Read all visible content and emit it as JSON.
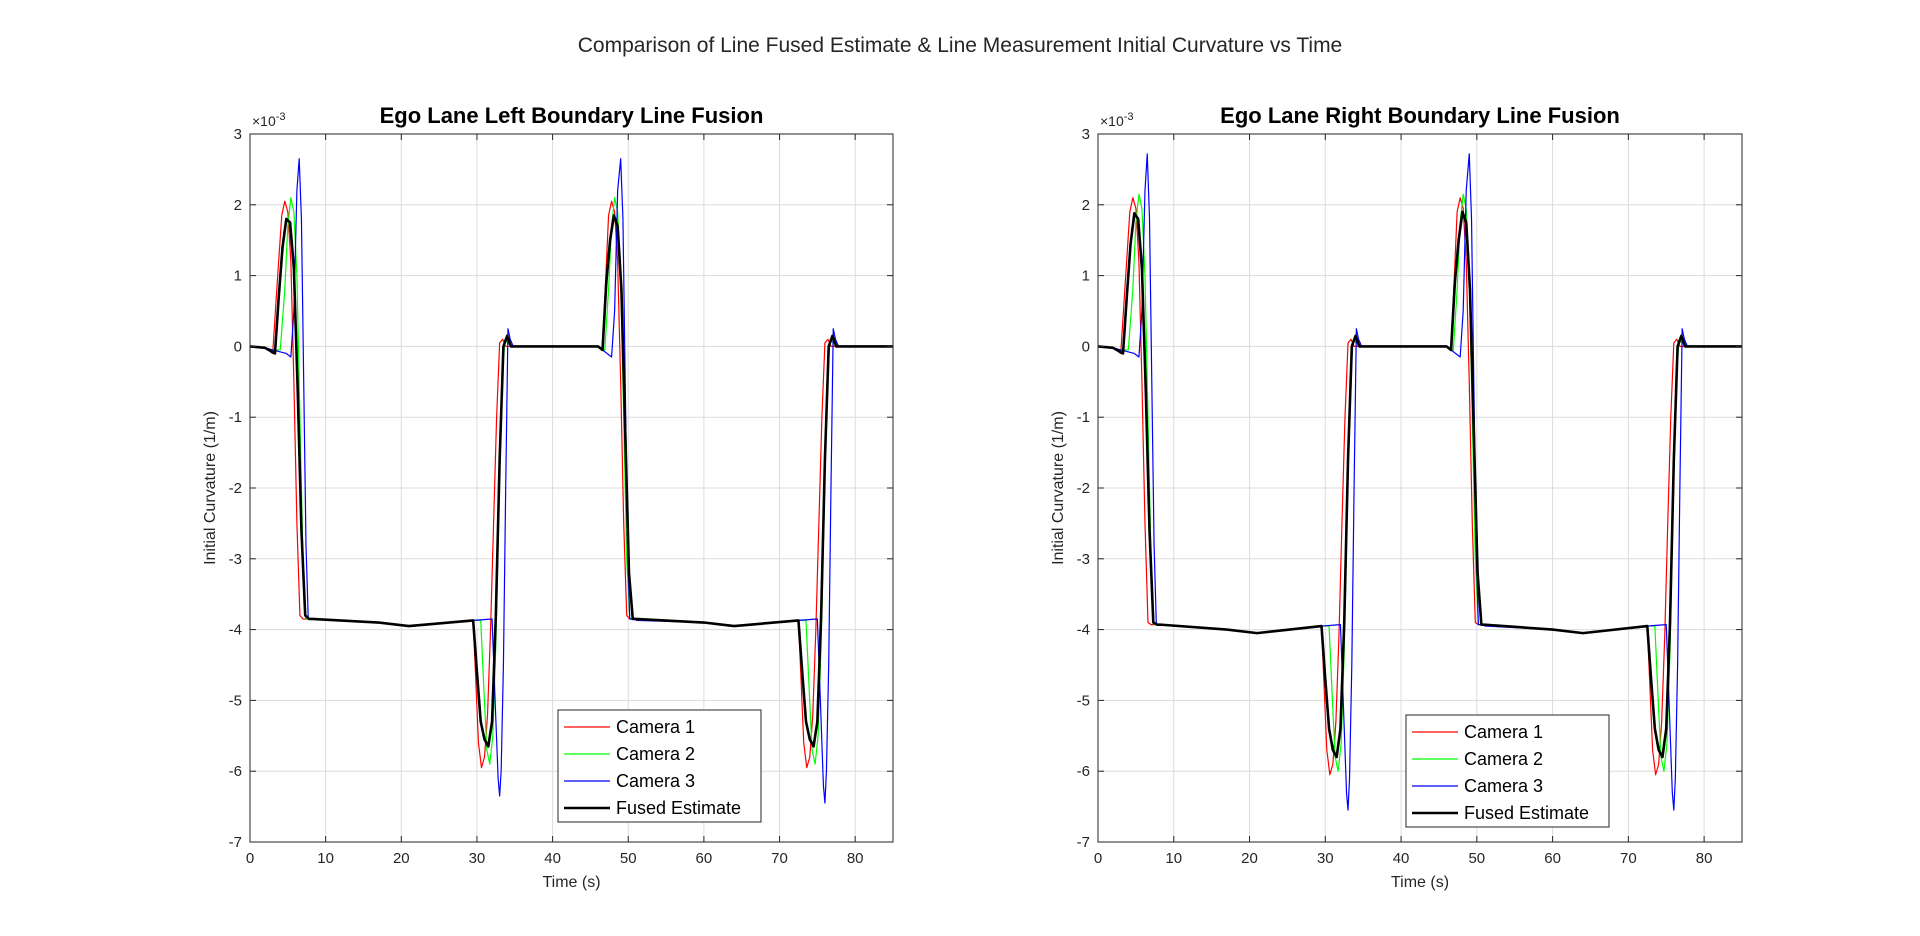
{
  "figure": {
    "suptitle": "Comparison of Line Fused Estimate & Line Measurement Initial Curvature vs Time"
  },
  "colors": {
    "camera1": "#ff0000",
    "camera2": "#00ff00",
    "camera3": "#0000ff",
    "fused": "#000000",
    "grid": "#dcdcdc",
    "axis": "#262626"
  },
  "chart_data": [
    {
      "type": "line",
      "title": "Ego Lane Left Boundary Line Fusion",
      "xlabel": "Time (s)",
      "ylabel": "Initial Curvature (1/m)",
      "y_exponent_label": "×10",
      "y_exponent_power": "-3",
      "xlim": [
        0,
        85
      ],
      "ylim": [
        -7,
        3
      ],
      "xticks": [
        0,
        10,
        20,
        30,
        40,
        50,
        60,
        70,
        80
      ],
      "yticks": [
        -7,
        -6,
        -5,
        -4,
        -3,
        -2,
        -1,
        0,
        1,
        2,
        3
      ],
      "xtick_labels": [
        "0",
        "10",
        "20",
        "30",
        "40",
        "50",
        "60",
        "70",
        "80"
      ],
      "ytick_labels": [
        "-7",
        "-6",
        "-5",
        "-4",
        "-3",
        "-2",
        "-1",
        "0",
        "1",
        "2",
        "3"
      ],
      "grid": true,
      "legend": "lower-right",
      "series": [
        {
          "name": "Camera 1",
          "color": "camera1",
          "width": 1.2,
          "x": [
            0,
            2,
            3,
            3.6,
            4.2,
            4.6,
            5.0,
            5.4,
            5.8,
            6.2,
            6.6,
            7.0,
            7.6,
            8.0,
            17,
            21,
            29.5,
            29.8,
            30.2,
            30.6,
            31.0,
            31.4,
            31.8,
            32.2,
            32.6,
            33.0,
            33.4,
            33.8,
            34.2,
            34.6,
            35.2,
            46.0,
            46.6,
            47.0,
            47.4,
            47.8,
            48.2,
            48.6,
            49.0,
            49.4,
            49.8,
            50.2,
            50.6,
            51.0,
            60,
            64,
            72.5,
            72.8,
            73.2,
            73.6,
            74.0,
            74.4,
            74.8,
            75.2,
            75.6,
            76.0,
            76.4,
            76.8,
            77.2,
            77.6,
            78.2,
            85
          ],
          "y": [
            0,
            -0.02,
            -0.1,
            0.9,
            1.85,
            2.05,
            1.9,
            1.2,
            -0.5,
            -2.5,
            -3.8,
            -3.85,
            -3.85,
            -3.85,
            -3.9,
            -3.95,
            -3.87,
            -4.6,
            -5.6,
            -5.95,
            -5.8,
            -5.2,
            -4.0,
            -2.5,
            -1.0,
            0.05,
            0.1,
            0,
            0,
            0,
            0,
            0,
            -0.05,
            0.9,
            1.85,
            2.05,
            1.9,
            1.2,
            -0.5,
            -2.5,
            -3.8,
            -3.85,
            -3.85,
            -3.85,
            -3.9,
            -3.95,
            -3.87,
            -4.6,
            -5.6,
            -5.95,
            -5.8,
            -5.2,
            -4.0,
            -2.5,
            -1.0,
            0.05,
            0.1,
            0,
            0,
            0,
            0,
            0
          ]
        },
        {
          "name": "Camera 2",
          "color": "camera2",
          "width": 1.2,
          "x": [
            0,
            2,
            3,
            4.0,
            4.6,
            5.0,
            5.4,
            5.8,
            6.2,
            6.6,
            7.0,
            7.4,
            7.8,
            8.2,
            17,
            21,
            29.5,
            30.5,
            30.9,
            31.3,
            31.7,
            32.1,
            32.5,
            32.9,
            33.3,
            33.7,
            34.1,
            34.5,
            35.2,
            46.0,
            46.9,
            47.4,
            47.8,
            48.2,
            48.6,
            49.0,
            49.4,
            49.8,
            50.2,
            50.6,
            51.0,
            60,
            64,
            72.5,
            73.5,
            73.9,
            74.3,
            74.7,
            75.1,
            75.5,
            75.9,
            76.3,
            76.7,
            77.1,
            77.5,
            78.2,
            85
          ],
          "y": [
            0,
            -0.02,
            -0.05,
            -0.05,
            0.8,
            1.7,
            2.1,
            1.9,
            1.0,
            -1.0,
            -3.0,
            -3.85,
            -3.85,
            -3.85,
            -3.9,
            -3.95,
            -3.87,
            -3.87,
            -4.8,
            -5.7,
            -5.9,
            -5.5,
            -4.2,
            -2.3,
            -0.5,
            0.1,
            0.05,
            0,
            0,
            0,
            -0.05,
            0.8,
            1.7,
            2.1,
            1.9,
            1.0,
            -1.0,
            -3.0,
            -3.85,
            -3.85,
            -3.85,
            -3.9,
            -3.95,
            -3.87,
            -3.87,
            -4.8,
            -5.7,
            -5.9,
            -5.5,
            -4.2,
            -2.3,
            -0.5,
            0.1,
            0.05,
            0,
            0,
            0
          ]
        },
        {
          "name": "Camera 3",
          "color": "camera3",
          "width": 1.2,
          "x": [
            0,
            2,
            3,
            4.8,
            5.4,
            5.8,
            6.2,
            6.5,
            6.8,
            7.1,
            7.4,
            7.7,
            8.0,
            8.3,
            17,
            21,
            29.5,
            32.0,
            32.4,
            32.8,
            33.0,
            33.2,
            33.5,
            33.8,
            34.1,
            34.4,
            34.8,
            35.2,
            46.0,
            47.8,
            48.2,
            48.6,
            49.0,
            49.3,
            49.6,
            49.9,
            50.2,
            50.5,
            50.8,
            51.1,
            60,
            64,
            72.5,
            75.0,
            75.4,
            75.8,
            76.0,
            76.2,
            76.5,
            76.8,
            77.1,
            77.4,
            77.8,
            78.2,
            85
          ],
          "y": [
            0,
            -0.02,
            -0.05,
            -0.1,
            -0.15,
            0.5,
            2.2,
            2.65,
            1.8,
            -0.5,
            -2.8,
            -3.85,
            -3.85,
            -3.85,
            -3.9,
            -3.95,
            -3.87,
            -3.85,
            -5.0,
            -6.1,
            -6.35,
            -6.0,
            -4.5,
            -2.0,
            0.25,
            0.1,
            0,
            0,
            0,
            -0.15,
            0.5,
            2.2,
            2.65,
            1.8,
            -0.5,
            -2.8,
            -3.85,
            -3.85,
            -3.85,
            -3.87,
            -3.9,
            -3.95,
            -3.87,
            -3.85,
            -5.0,
            -6.2,
            -6.45,
            -6.0,
            -4.5,
            -2.0,
            0.25,
            0.1,
            0,
            0,
            0
          ]
        },
        {
          "name": "Fused Estimate",
          "color": "fused",
          "width": 2.6,
          "x": [
            0,
            2,
            3.3,
            3.8,
            4.3,
            4.8,
            5.3,
            5.8,
            6.3,
            6.8,
            7.3,
            7.8,
            8.2,
            17,
            21,
            29.5,
            30.0,
            30.5,
            31.0,
            31.5,
            32.0,
            32.5,
            33.0,
            33.5,
            34.0,
            34.5,
            35.2,
            46.0,
            46.6,
            47.1,
            47.6,
            48.1,
            48.6,
            49.1,
            49.6,
            50.1,
            50.6,
            51.0,
            60,
            64,
            72.5,
            73.0,
            73.5,
            74.0,
            74.5,
            75.0,
            75.5,
            76.0,
            76.5,
            77.0,
            77.5,
            78.2,
            85
          ],
          "y": [
            0,
            -0.02,
            -0.1,
            0.7,
            1.4,
            1.8,
            1.75,
            1.1,
            -0.6,
            -2.6,
            -3.8,
            -3.85,
            -3.85,
            -3.9,
            -3.95,
            -3.87,
            -4.6,
            -5.3,
            -5.55,
            -5.65,
            -5.3,
            -3.8,
            -1.6,
            0.0,
            0.15,
            0,
            0,
            0,
            -0.05,
            0.9,
            1.5,
            1.85,
            1.7,
            0.8,
            -1.2,
            -3.2,
            -3.85,
            -3.85,
            -3.9,
            -3.95,
            -3.87,
            -4.6,
            -5.3,
            -5.55,
            -5.65,
            -5.3,
            -3.8,
            -1.6,
            0.0,
            0.15,
            0,
            0,
            0
          ]
        }
      ]
    },
    {
      "type": "line",
      "title": "Ego Lane Right Boundary Line Fusion",
      "xlabel": "Time (s)",
      "ylabel": "Initial Curvature (1/m)",
      "y_exponent_label": "×10",
      "y_exponent_power": "-3",
      "xlim": [
        0,
        85
      ],
      "ylim": [
        -7,
        3
      ],
      "xticks": [
        0,
        10,
        20,
        30,
        40,
        50,
        60,
        70,
        80
      ],
      "yticks": [
        -7,
        -6,
        -5,
        -4,
        -3,
        -2,
        -1,
        0,
        1,
        2,
        3
      ],
      "xtick_labels": [
        "0",
        "10",
        "20",
        "30",
        "40",
        "50",
        "60",
        "70",
        "80"
      ],
      "ytick_labels": [
        "-7",
        "-6",
        "-5",
        "-4",
        "-3",
        "-2",
        "-1",
        "0",
        "1",
        "2",
        "3"
      ],
      "grid": true,
      "legend": "lower-right",
      "series": [
        {
          "name": "Camera 1",
          "color": "camera1",
          "width": 1.2,
          "x": [
            0,
            2,
            3,
            3.6,
            4.2,
            4.6,
            5.0,
            5.4,
            5.8,
            6.2,
            6.6,
            7.0,
            7.6,
            8.0,
            17,
            21,
            29.5,
            29.8,
            30.2,
            30.6,
            31.0,
            31.4,
            31.8,
            32.2,
            32.6,
            33.0,
            33.4,
            33.8,
            34.2,
            34.6,
            35.2,
            46.0,
            46.6,
            47.0,
            47.4,
            47.8,
            48.2,
            48.6,
            49.0,
            49.4,
            49.8,
            50.2,
            50.6,
            51.0,
            60,
            64,
            72.5,
            72.8,
            73.2,
            73.6,
            74.0,
            74.4,
            74.8,
            75.2,
            75.6,
            76.0,
            76.4,
            76.8,
            77.2,
            77.6,
            78.2,
            85
          ],
          "y": [
            0,
            -0.02,
            -0.1,
            0.9,
            1.9,
            2.1,
            1.95,
            1.2,
            -0.5,
            -2.5,
            -3.9,
            -3.93,
            -3.93,
            -3.93,
            -4.0,
            -4.05,
            -3.95,
            -4.7,
            -5.7,
            -6.05,
            -5.9,
            -5.3,
            -4.1,
            -2.5,
            -1.0,
            0.05,
            0.1,
            0,
            0,
            0,
            0,
            0,
            -0.05,
            0.9,
            1.9,
            2.1,
            1.95,
            1.2,
            -0.5,
            -2.5,
            -3.9,
            -3.93,
            -3.93,
            -3.93,
            -4.0,
            -4.05,
            -3.95,
            -4.7,
            -5.7,
            -6.05,
            -5.9,
            -5.3,
            -4.1,
            -2.5,
            -1.0,
            0.05,
            0.1,
            0,
            0,
            0,
            0,
            0
          ]
        },
        {
          "name": "Camera 2",
          "color": "camera2",
          "width": 1.2,
          "x": [
            0,
            2,
            3,
            4.0,
            4.6,
            5.0,
            5.4,
            5.8,
            6.2,
            6.6,
            7.0,
            7.4,
            7.8,
            8.2,
            17,
            21,
            29.5,
            30.5,
            30.9,
            31.3,
            31.7,
            32.1,
            32.5,
            32.9,
            33.3,
            33.7,
            34.1,
            34.5,
            35.2,
            46.0,
            46.9,
            47.4,
            47.8,
            48.2,
            48.6,
            49.0,
            49.4,
            49.8,
            50.2,
            50.6,
            51.0,
            60,
            64,
            72.5,
            73.5,
            73.9,
            74.3,
            74.7,
            75.1,
            75.5,
            75.9,
            76.3,
            76.7,
            77.1,
            77.5,
            78.2,
            85
          ],
          "y": [
            0,
            -0.02,
            -0.05,
            -0.05,
            0.8,
            1.75,
            2.15,
            1.95,
            1.0,
            -1.0,
            -3.0,
            -3.93,
            -3.93,
            -3.93,
            -4.0,
            -4.05,
            -3.95,
            -3.95,
            -4.9,
            -5.8,
            -6.0,
            -5.6,
            -4.3,
            -2.3,
            -0.5,
            0.1,
            0.05,
            0,
            0,
            0,
            -0.05,
            0.8,
            1.75,
            2.15,
            1.95,
            1.0,
            -1.0,
            -3.0,
            -3.93,
            -3.93,
            -3.93,
            -4.0,
            -4.05,
            -3.95,
            -3.95,
            -4.9,
            -5.8,
            -6.0,
            -5.6,
            -4.3,
            -2.3,
            -0.5,
            0.1,
            0.05,
            0,
            0,
            0
          ]
        },
        {
          "name": "Camera 3",
          "color": "camera3",
          "width": 1.2,
          "x": [
            0,
            2,
            3,
            4.8,
            5.4,
            5.8,
            6.2,
            6.5,
            6.8,
            7.1,
            7.4,
            7.7,
            8.0,
            8.3,
            17,
            21,
            29.5,
            32.0,
            32.4,
            32.8,
            33.0,
            33.2,
            33.5,
            33.8,
            34.1,
            34.4,
            34.8,
            35.2,
            46.0,
            47.8,
            48.2,
            48.6,
            49.0,
            49.3,
            49.6,
            49.9,
            50.2,
            50.5,
            50.8,
            51.1,
            60,
            64,
            72.5,
            75.0,
            75.4,
            75.8,
            76.0,
            76.2,
            76.5,
            76.8,
            77.1,
            77.4,
            77.8,
            78.2,
            85
          ],
          "y": [
            0,
            -0.02,
            -0.05,
            -0.1,
            -0.15,
            0.5,
            2.2,
            2.72,
            1.8,
            -0.5,
            -2.8,
            -3.93,
            -3.93,
            -3.93,
            -4.0,
            -4.05,
            -3.95,
            -3.93,
            -5.1,
            -6.3,
            -6.55,
            -6.1,
            -4.5,
            -2.0,
            0.25,
            0.1,
            0,
            0,
            0,
            -0.15,
            0.5,
            2.2,
            2.72,
            1.8,
            -0.5,
            -2.8,
            -3.93,
            -3.93,
            -3.93,
            -3.95,
            -4.0,
            -4.05,
            -3.95,
            -3.93,
            -5.1,
            -6.3,
            -6.55,
            -6.1,
            -4.5,
            -2.0,
            0.25,
            0.1,
            0,
            0,
            0
          ]
        },
        {
          "name": "Fused Estimate",
          "color": "fused",
          "width": 2.6,
          "x": [
            0,
            2,
            3.3,
            3.8,
            4.3,
            4.8,
            5.3,
            5.8,
            6.3,
            6.8,
            7.3,
            7.8,
            8.2,
            17,
            21,
            29.5,
            30.0,
            30.5,
            31.0,
            31.5,
            32.0,
            32.5,
            33.0,
            33.5,
            34.0,
            34.5,
            35.2,
            46.0,
            46.6,
            47.1,
            47.6,
            48.1,
            48.6,
            49.1,
            49.6,
            50.1,
            50.6,
            51.0,
            60,
            64,
            72.5,
            73.0,
            73.5,
            74.0,
            74.5,
            75.0,
            75.5,
            76.0,
            76.5,
            77.0,
            77.5,
            78.2,
            85
          ],
          "y": [
            0,
            -0.02,
            -0.1,
            0.7,
            1.45,
            1.88,
            1.8,
            1.1,
            -0.6,
            -2.6,
            -3.9,
            -3.93,
            -3.93,
            -4.0,
            -4.05,
            -3.95,
            -4.7,
            -5.4,
            -5.7,
            -5.8,
            -5.4,
            -3.9,
            -1.6,
            0.0,
            0.15,
            0,
            0,
            0,
            -0.05,
            0.9,
            1.5,
            1.9,
            1.75,
            0.8,
            -1.2,
            -3.2,
            -3.93,
            -3.93,
            -4.0,
            -4.05,
            -3.95,
            -4.7,
            -5.4,
            -5.7,
            -5.8,
            -5.4,
            -3.9,
            -1.6,
            0.0,
            0.15,
            0,
            0,
            0
          ]
        }
      ]
    }
  ]
}
